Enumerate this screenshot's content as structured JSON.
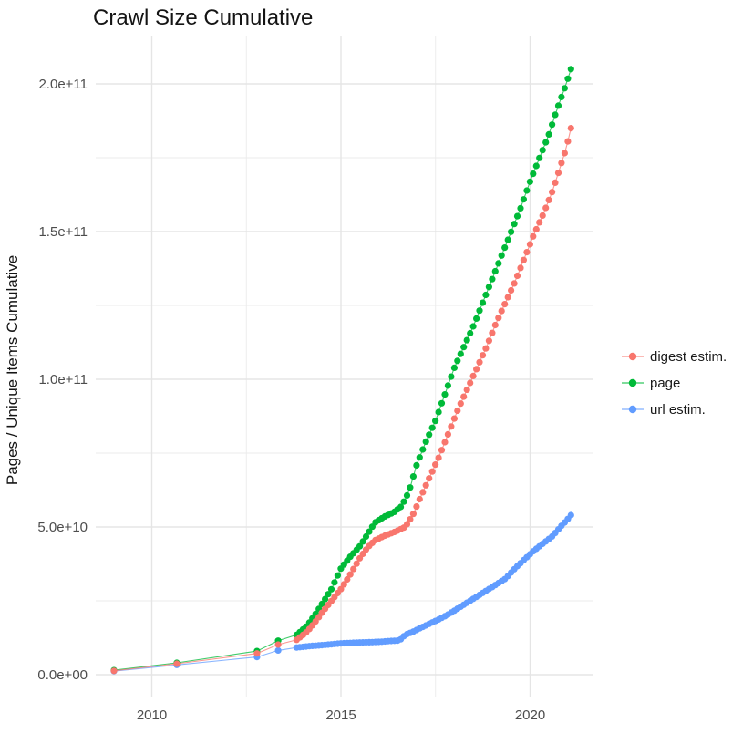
{
  "chart_data": {
    "type": "scatter",
    "title": "Crawl Size Cumulative",
    "xlabel": "",
    "ylabel": "Pages / Unique Items Cumulative",
    "x_ticks": {
      "values": [
        2010,
        2015,
        2020
      ],
      "labels": [
        "2010",
        "2015",
        "2020"
      ]
    },
    "y_ticks": {
      "values_billion": [
        0,
        50,
        100,
        150,
        200
      ],
      "labels": [
        "0.0e+00",
        "5.0e+10",
        "1.0e+11",
        "1.5e+11",
        "2.0e+11"
      ]
    },
    "x_range": [
      2008.4,
      2021.7
    ],
    "y_range_billion": [
      -8,
      216
    ],
    "grid": {
      "major_color": "#E5E5E5",
      "minor_color": "#EBEBEB",
      "x_minor": [
        2012.5,
        2017.5
      ],
      "y_minor_billion": [
        25,
        75,
        125,
        175
      ]
    },
    "legend": {
      "position": "right",
      "items": [
        "digest estim.",
        "page",
        "url estim."
      ]
    },
    "sampling": {
      "sparse_years": [
        2009.0,
        2010.66,
        2012.78,
        2013.34
      ],
      "dense_start": 2013.83,
      "dense_step_years": 0.0833333,
      "dense_count": 88
    },
    "series": [
      {
        "name": "digest estim.",
        "color": "#F8766D",
        "anchors_year_billion": [
          [
            2009,
            1.3
          ],
          [
            2010.66,
            3.7
          ],
          [
            2012.78,
            7.2
          ],
          [
            2013.34,
            10.2
          ],
          [
            2013.83,
            11.8
          ],
          [
            2014.1,
            14.5
          ],
          [
            2014.3,
            17.5
          ],
          [
            2014.5,
            21
          ],
          [
            2014.75,
            25
          ],
          [
            2015,
            29
          ],
          [
            2015.25,
            34
          ],
          [
            2015.5,
            39.5
          ],
          [
            2015.7,
            43
          ],
          [
            2015.9,
            45.5
          ],
          [
            2016.15,
            47
          ],
          [
            2016.45,
            48.5
          ],
          [
            2016.7,
            50
          ],
          [
            2016.9,
            54
          ],
          [
            2017.1,
            60
          ],
          [
            2017.35,
            67
          ],
          [
            2017.6,
            74
          ],
          [
            2017.85,
            82
          ],
          [
            2018.1,
            90
          ],
          [
            2018.35,
            97
          ],
          [
            2018.6,
            104
          ],
          [
            2018.85,
            111
          ],
          [
            2019.1,
            119
          ],
          [
            2019.35,
            126
          ],
          [
            2019.6,
            133
          ],
          [
            2019.85,
            141
          ],
          [
            2020.1,
            149
          ],
          [
            2020.35,
            156
          ],
          [
            2020.6,
            164
          ],
          [
            2020.8,
            172
          ],
          [
            2020.95,
            178
          ],
          [
            2021.08,
            185
          ]
        ]
      },
      {
        "name": "page",
        "color": "#00BA38",
        "anchors_year_billion": [
          [
            2009,
            1.5
          ],
          [
            2010.66,
            4
          ],
          [
            2012.78,
            8
          ],
          [
            2013.34,
            11.5
          ],
          [
            2013.83,
            13.5
          ],
          [
            2014.1,
            16.5
          ],
          [
            2014.3,
            20
          ],
          [
            2014.5,
            24
          ],
          [
            2014.75,
            29
          ],
          [
            2015,
            36
          ],
          [
            2015.25,
            40
          ],
          [
            2015.5,
            43.5
          ],
          [
            2015.7,
            47.5
          ],
          [
            2015.9,
            51.5
          ],
          [
            2016.15,
            53.5
          ],
          [
            2016.4,
            55
          ],
          [
            2016.6,
            57
          ],
          [
            2016.8,
            62
          ],
          [
            2017,
            71
          ],
          [
            2017.25,
            79
          ],
          [
            2017.5,
            86
          ],
          [
            2017.75,
            95
          ],
          [
            2018,
            104
          ],
          [
            2018.25,
            111
          ],
          [
            2018.5,
            118
          ],
          [
            2018.75,
            126
          ],
          [
            2019,
            134
          ],
          [
            2019.25,
            142
          ],
          [
            2019.5,
            150
          ],
          [
            2019.75,
            158
          ],
          [
            2020,
            167
          ],
          [
            2020.25,
            175
          ],
          [
            2020.5,
            183
          ],
          [
            2020.7,
            191
          ],
          [
            2020.9,
            198
          ],
          [
            2021.08,
            205
          ]
        ]
      },
      {
        "name": "url estim.",
        "color": "#619CFF",
        "anchors_year_billion": [
          [
            2009,
            1.2
          ],
          [
            2010.66,
            3.3
          ],
          [
            2012.78,
            6
          ],
          [
            2013.34,
            8.2
          ],
          [
            2013.83,
            9.2
          ],
          [
            2014.2,
            9.7
          ],
          [
            2014.6,
            10.1
          ],
          [
            2015,
            10.6
          ],
          [
            2015.5,
            10.9
          ],
          [
            2016,
            11.1
          ],
          [
            2016.3,
            11.4
          ],
          [
            2016.55,
            11.6
          ],
          [
            2016.7,
            13.5
          ],
          [
            2016.9,
            14.5
          ],
          [
            2017.1,
            15.8
          ],
          [
            2017.35,
            17.3
          ],
          [
            2017.6,
            18.8
          ],
          [
            2017.85,
            20.5
          ],
          [
            2018.1,
            22.5
          ],
          [
            2018.35,
            24.5
          ],
          [
            2018.6,
            26.5
          ],
          [
            2018.85,
            28.5
          ],
          [
            2019.1,
            30.5
          ],
          [
            2019.35,
            32.5
          ],
          [
            2019.6,
            36
          ],
          [
            2019.85,
            39
          ],
          [
            2020.1,
            42
          ],
          [
            2020.35,
            44.5
          ],
          [
            2020.6,
            47
          ],
          [
            2020.8,
            50
          ],
          [
            2020.95,
            52
          ],
          [
            2021.08,
            54
          ]
        ]
      }
    ]
  }
}
